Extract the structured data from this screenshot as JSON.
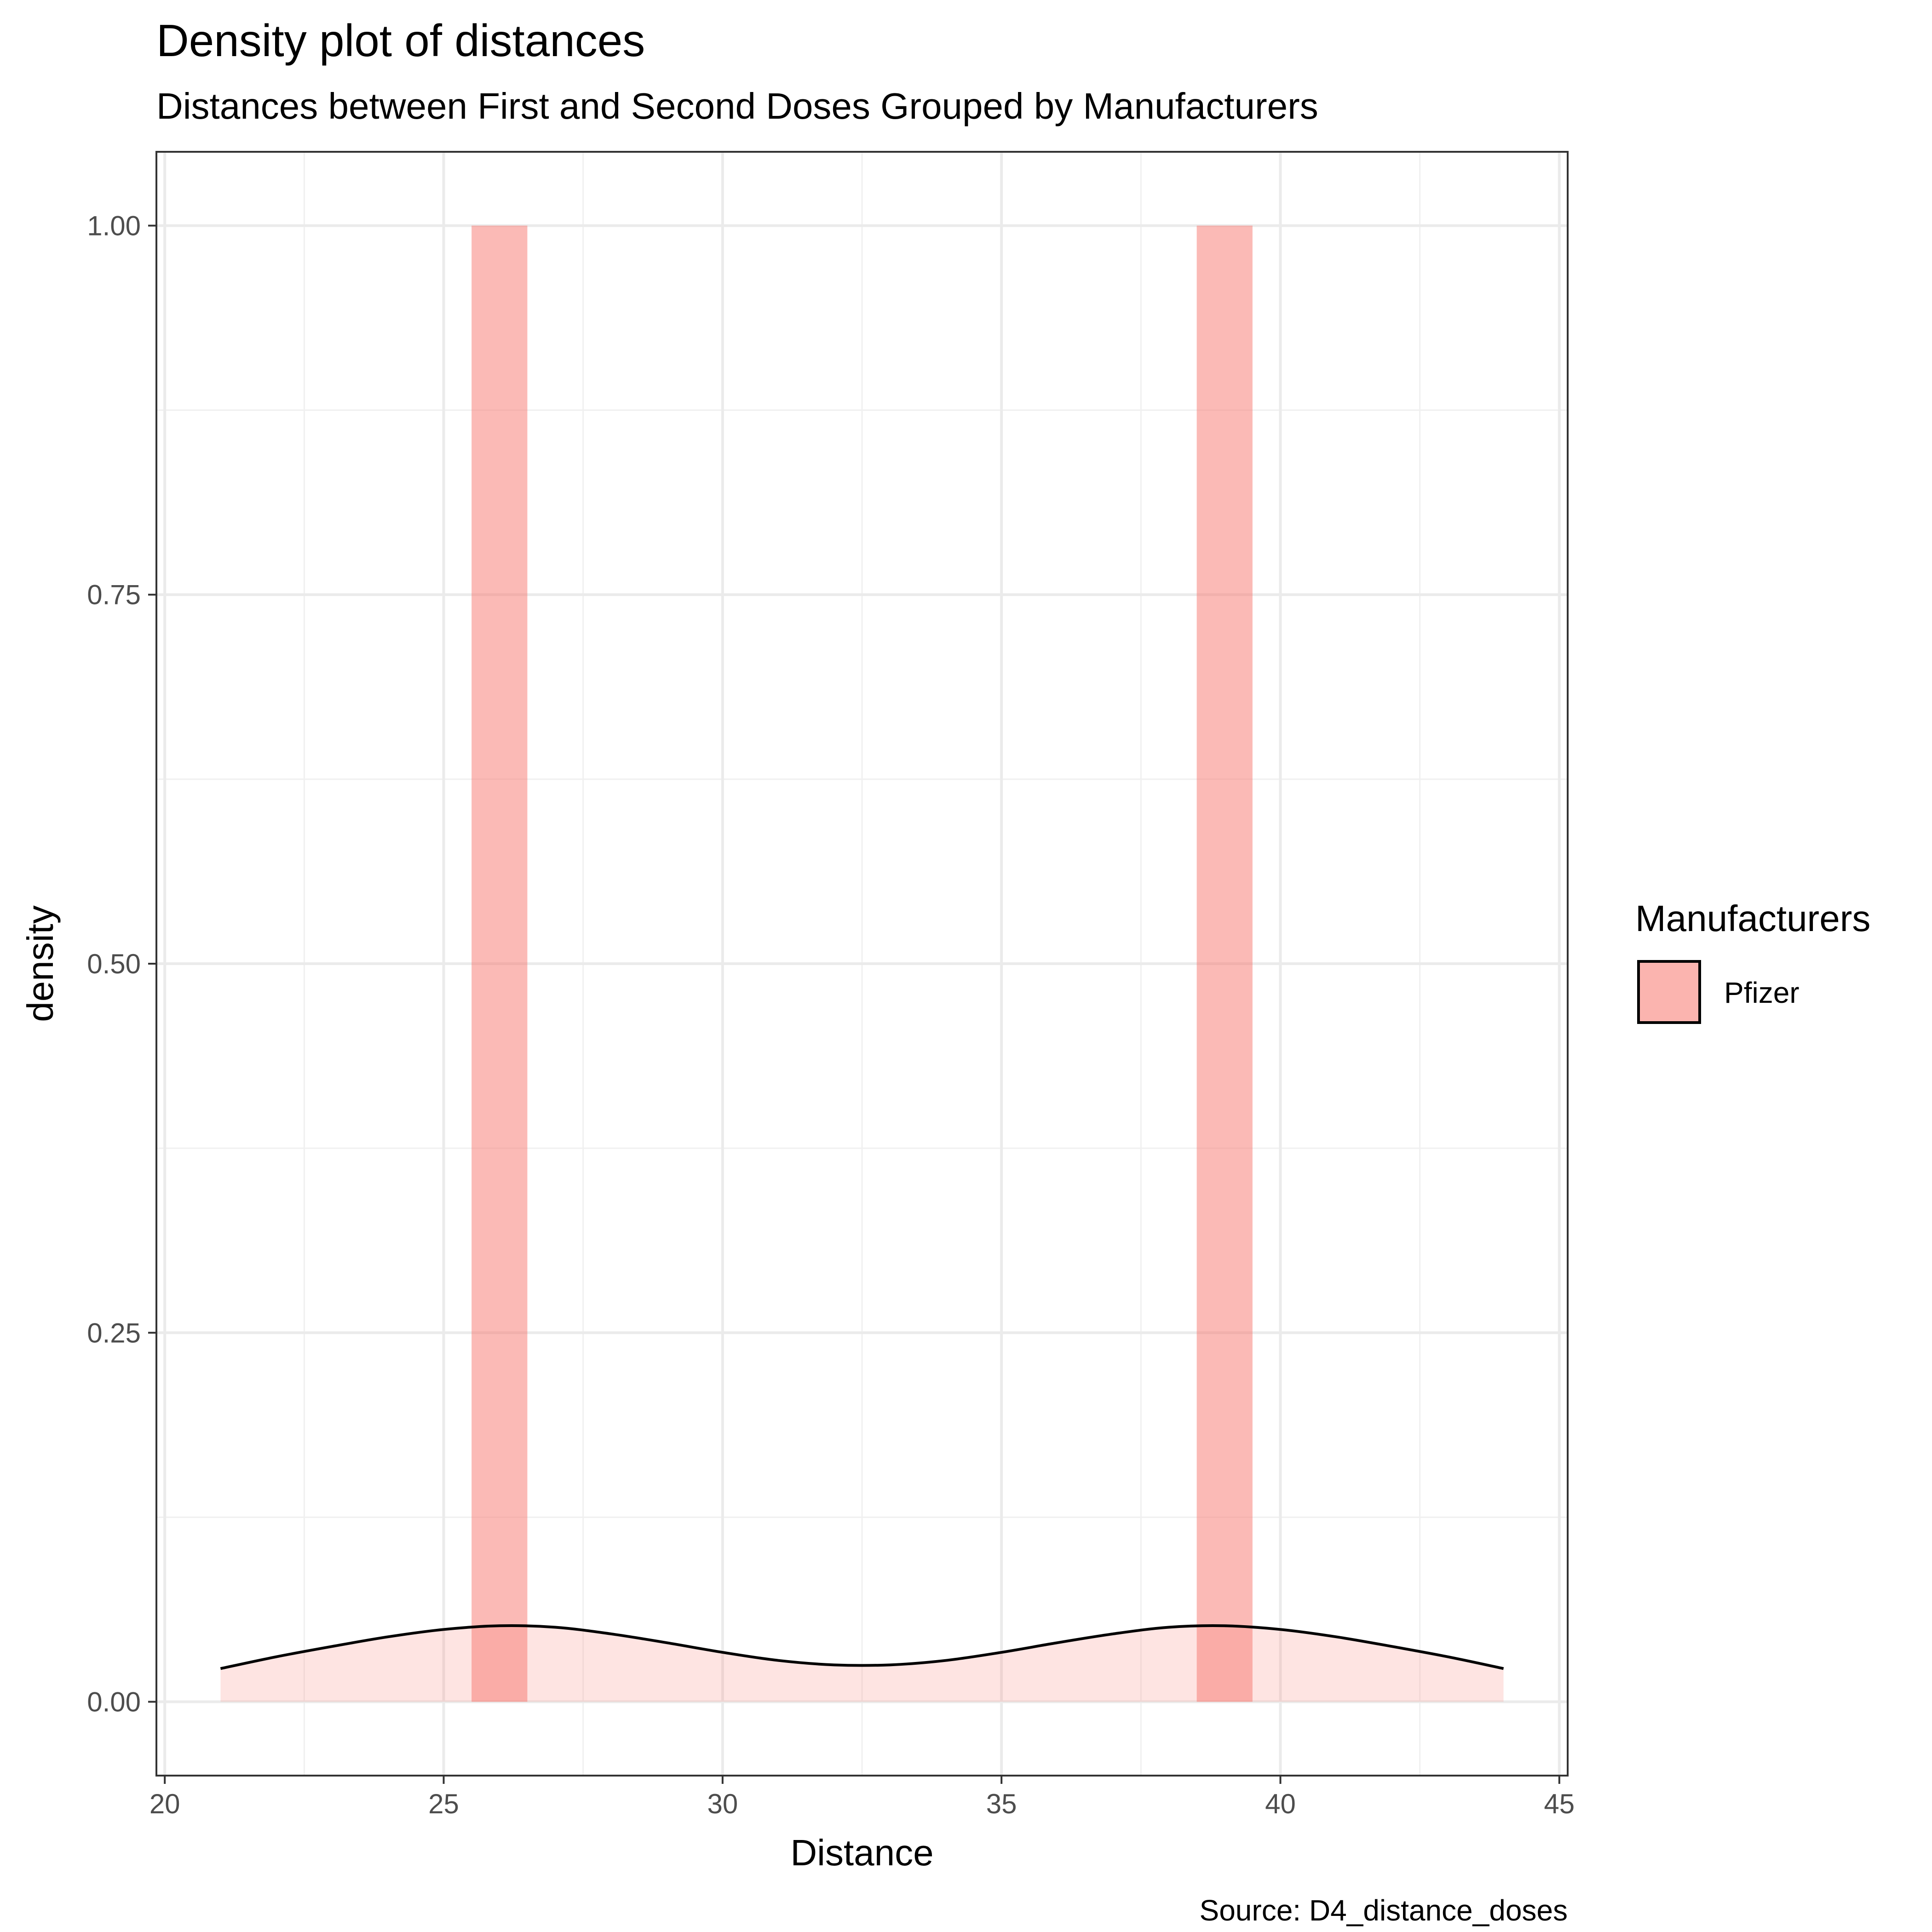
{
  "chart_data": {
    "type": "area",
    "title": "Density plot of distances",
    "subtitle": "Distances between First and Second Doses Grouped by Manufacturers",
    "xlabel": "Distance",
    "ylabel": "density",
    "caption": "Source: D4_distance_doses",
    "xlim": [
      19.85,
      45.15
    ],
    "ylim": [
      -0.05,
      1.05
    ],
    "x_ticks": [
      20,
      25,
      30,
      35,
      40,
      45
    ],
    "x_tick_labels": [
      "20",
      "25",
      "30",
      "35",
      "40",
      "45"
    ],
    "y_ticks": [
      0,
      0.25,
      0.5,
      0.75,
      1.0
    ],
    "y_tick_labels": [
      "0.00",
      "0.25",
      "0.50",
      "0.75",
      "1.00"
    ],
    "grid": true,
    "legend": {
      "title": "Manufacturers",
      "position": "right",
      "entries": [
        {
          "label": "Pfizer",
          "color": "#F8766D"
        }
      ]
    },
    "series": [
      {
        "kind": "histogram",
        "color": "#F8766D",
        "bins": [
          {
            "x0": 25.5,
            "x1": 26.5,
            "density": 1.0
          },
          {
            "x0": 38.5,
            "x1": 39.5,
            "density": 1.0
          }
        ]
      },
      {
        "kind": "density",
        "color": "#F8766D",
        "x": [
          21,
          22,
          23,
          24,
          25,
          26,
          27,
          28,
          29,
          30,
          31,
          32,
          33,
          34,
          35,
          36,
          37,
          38,
          39,
          40,
          41,
          42,
          43,
          44
        ],
        "density": [
          0.0225,
          0.0305,
          0.0375,
          0.044,
          0.049,
          0.0515,
          0.0505,
          0.046,
          0.04,
          0.0335,
          0.028,
          0.025,
          0.025,
          0.028,
          0.0335,
          0.04,
          0.046,
          0.0505,
          0.0515,
          0.049,
          0.044,
          0.0375,
          0.0305,
          0.0225
        ]
      }
    ]
  }
}
